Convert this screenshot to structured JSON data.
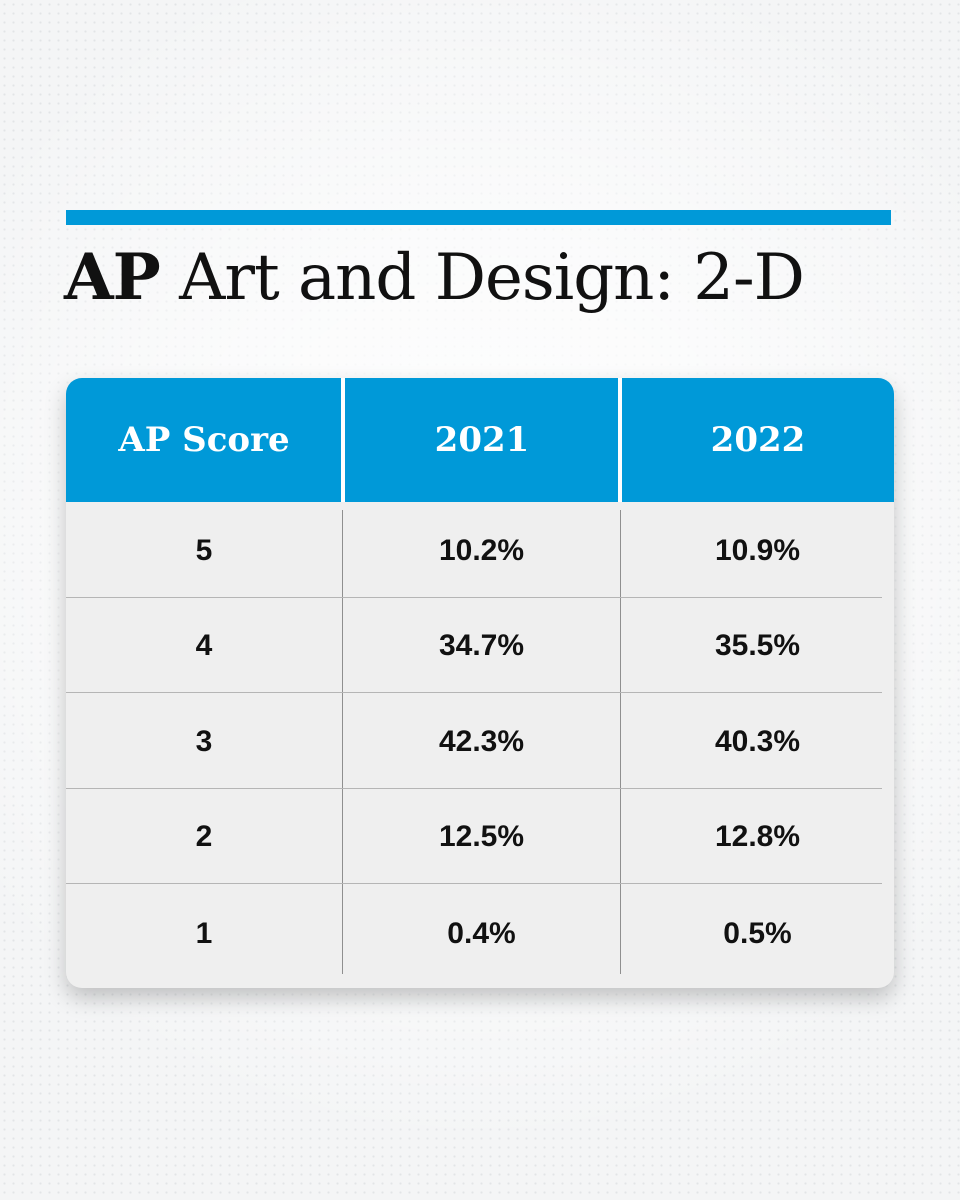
{
  "title": {
    "prefix": "AP",
    "rest": " Art and Design: 2-D"
  },
  "colors": {
    "accent": "#0099d8",
    "header_bg": "#0099d8",
    "header_text": "#ffffff",
    "body_bg": "#efefef",
    "cell_text": "#111111"
  },
  "chart_data": {
    "type": "table",
    "title": "AP Art and Design: 2-D",
    "columns": [
      "AP Score",
      "2021",
      "2022"
    ],
    "rows": [
      [
        "5",
        "10.2%",
        "10.9%"
      ],
      [
        "4",
        "34.7%",
        "35.5%"
      ],
      [
        "3",
        "42.3%",
        "40.3%"
      ],
      [
        "2",
        "12.5%",
        "12.8%"
      ],
      [
        "1",
        "0.4%",
        "0.5%"
      ]
    ]
  }
}
